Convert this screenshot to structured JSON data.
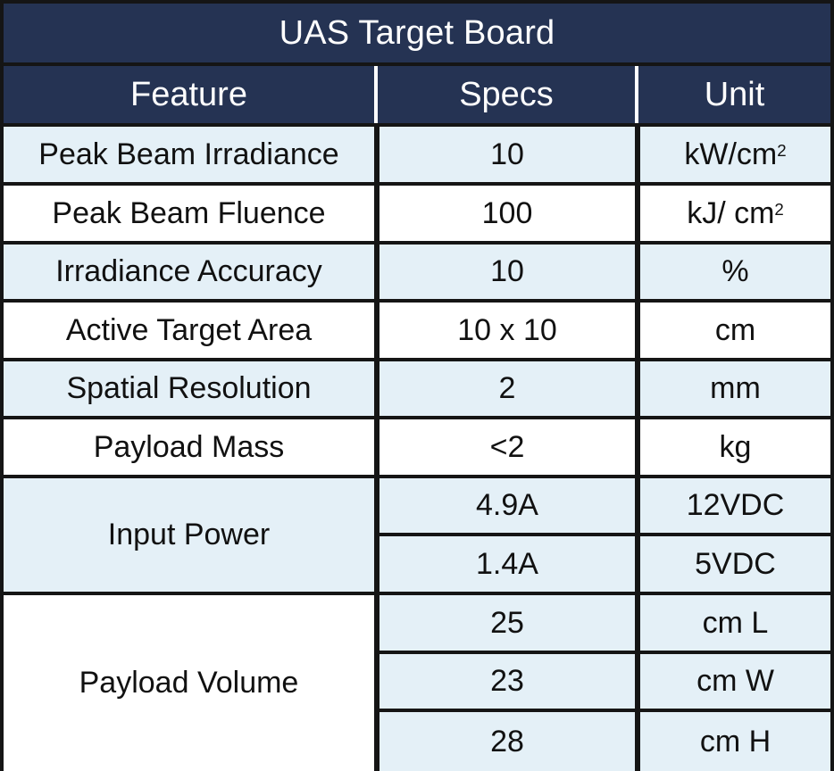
{
  "title": "UAS Target Board",
  "headers": {
    "feature": "Feature",
    "specs": "Specs",
    "unit": "Unit"
  },
  "rows": [
    {
      "feature": "Peak Beam Irradiance",
      "spec": "10",
      "unit_base": "kW/cm",
      "unit_sup": "2"
    },
    {
      "feature": "Peak Beam Fluence",
      "spec": "100",
      "unit_base": "kJ/ cm",
      "unit_sup": "2"
    },
    {
      "feature": "Irradiance Accuracy",
      "spec": "10",
      "unit": "%"
    },
    {
      "feature": "Active Target Area",
      "spec": "10 x 10",
      "unit": "cm"
    },
    {
      "feature": "Spatial Resolution",
      "spec": "2",
      "unit": "mm"
    },
    {
      "feature": "Payload Mass",
      "spec": "<2",
      "unit": "kg"
    }
  ],
  "input_power": {
    "feature": "Input Power",
    "entries": [
      {
        "spec": "4.9A",
        "unit": "12VDC"
      },
      {
        "spec": "1.4A",
        "unit": "5VDC"
      }
    ]
  },
  "payload_volume": {
    "feature": "Payload Volume",
    "entries": [
      {
        "spec": "25",
        "unit": "cm L"
      },
      {
        "spec": "23",
        "unit": "cm W"
      },
      {
        "spec": "28",
        "unit": "cm H"
      }
    ]
  },
  "colors": {
    "header_bg": "#253353",
    "header_text": "#ffffff",
    "row_blue": "#e4f0f7",
    "row_white": "#ffffff",
    "grid": "#151515"
  }
}
